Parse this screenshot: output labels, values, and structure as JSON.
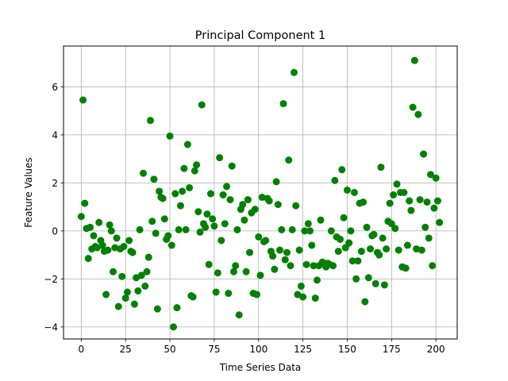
{
  "chart_data": {
    "type": "scatter",
    "title": "Principal Component 1",
    "xlabel": "Time Series Data",
    "ylabel": "Feature Values",
    "xlim": [
      -10,
      212
    ],
    "ylim": [
      -4.5,
      7.7
    ],
    "xticks": [
      0,
      25,
      50,
      75,
      100,
      125,
      150,
      175,
      200
    ],
    "yticks": [
      -4,
      -2,
      0,
      2,
      4,
      6
    ],
    "grid": true,
    "marker_color": "#008000",
    "series": [
      {
        "points": [
          [
            0,
            0.6
          ],
          [
            1,
            5.45
          ],
          [
            2,
            1.15
          ],
          [
            3,
            0.1
          ],
          [
            4,
            -1.15
          ],
          [
            5,
            0.15
          ],
          [
            6,
            -0.75
          ],
          [
            7,
            -0.2
          ],
          [
            8,
            -0.65
          ],
          [
            9,
            -0.7
          ],
          [
            10,
            0.35
          ],
          [
            11,
            -0.4
          ],
          [
            12,
            -0.6
          ],
          [
            13,
            -0.85
          ],
          [
            14,
            -2.65
          ],
          [
            15,
            -0.8
          ],
          [
            16,
            0.25
          ],
          [
            17,
            0.0
          ],
          [
            18,
            -1.7
          ],
          [
            19,
            -0.7
          ],
          [
            20,
            -0.3
          ],
          [
            21,
            -3.15
          ],
          [
            22,
            -0.75
          ],
          [
            23,
            -1.9
          ],
          [
            24,
            -0.65
          ],
          [
            25,
            -2.8
          ],
          [
            26,
            -2.55
          ],
          [
            27,
            -0.4
          ],
          [
            28,
            -0.85
          ],
          [
            29,
            -0.9
          ],
          [
            30,
            -3.05
          ],
          [
            31,
            -1.95
          ],
          [
            32,
            -2.5
          ],
          [
            33,
            0.05
          ],
          [
            34,
            -1.85
          ],
          [
            35,
            2.4
          ],
          [
            36,
            -2.3
          ],
          [
            37,
            -1.7
          ],
          [
            38,
            -1.1
          ],
          [
            39,
            4.6
          ],
          [
            40,
            0.4
          ],
          [
            41,
            2.15
          ],
          [
            42,
            -0.1
          ],
          [
            43,
            -3.25
          ],
          [
            44,
            1.65
          ],
          [
            45,
            1.4
          ],
          [
            46,
            1.35
          ],
          [
            47,
            0.5
          ],
          [
            48,
            -0.35
          ],
          [
            49,
            -0.2
          ],
          [
            50,
            3.95
          ],
          [
            51,
            -0.6
          ],
          [
            52,
            -4.0
          ],
          [
            53,
            1.55
          ],
          [
            54,
            -3.2
          ],
          [
            55,
            0.05
          ],
          [
            56,
            1.05
          ],
          [
            57,
            1.65
          ],
          [
            58,
            2.6
          ],
          [
            59,
            0.05
          ],
          [
            60,
            3.6
          ],
          [
            61,
            1.8
          ],
          [
            62,
            -2.7
          ],
          [
            63,
            -2.75
          ],
          [
            64,
            2.5
          ],
          [
            65,
            2.75
          ],
          [
            66,
            0.8
          ],
          [
            67,
            -0.05
          ],
          [
            68,
            5.25
          ],
          [
            69,
            0.3
          ],
          [
            70,
            0.15
          ],
          [
            71,
            0.7
          ],
          [
            72,
            -1.4
          ],
          [
            73,
            1.55
          ],
          [
            74,
            0.5
          ],
          [
            75,
            0.2
          ],
          [
            76,
            -2.55
          ],
          [
            77,
            -1.75
          ],
          [
            78,
            3.05
          ],
          [
            79,
            -0.4
          ],
          [
            80,
            1.5
          ],
          [
            81,
            0.3
          ],
          [
            82,
            1.85
          ],
          [
            83,
            -2.6
          ],
          [
            84,
            1.3
          ],
          [
            85,
            2.7
          ],
          [
            86,
            -1.7
          ],
          [
            87,
            -1.45
          ],
          [
            88,
            0.05
          ],
          [
            89,
            -3.5
          ],
          [
            90,
            0.9
          ],
          [
            91,
            1.1
          ],
          [
            92,
            0.45
          ],
          [
            93,
            -1.7
          ],
          [
            94,
            1.3
          ],
          [
            95,
            -0.9
          ],
          [
            96,
            0.75
          ],
          [
            97,
            -2.6
          ],
          [
            98,
            0.9
          ],
          [
            99,
            -2.65
          ],
          [
            100,
            -0.25
          ],
          [
            101,
            -1.85
          ],
          [
            102,
            1.4
          ],
          [
            103,
            -0.45
          ],
          [
            104,
            -0.4
          ],
          [
            105,
            1.35
          ],
          [
            106,
            1.25
          ],
          [
            107,
            -0.85
          ],
          [
            108,
            -1.05
          ],
          [
            109,
            -1.6
          ],
          [
            110,
            2.05
          ],
          [
            111,
            1.1
          ],
          [
            112,
            -0.8
          ],
          [
            113,
            0.05
          ],
          [
            114,
            5.3
          ],
          [
            115,
            -1.2
          ],
          [
            116,
            -0.9
          ],
          [
            117,
            2.95
          ],
          [
            118,
            -1.45
          ],
          [
            119,
            0.05
          ],
          [
            120,
            6.6
          ],
          [
            121,
            1.05
          ],
          [
            122,
            -2.65
          ],
          [
            123,
            -0.8
          ],
          [
            124,
            -2.3
          ],
          [
            125,
            -2.75
          ],
          [
            126,
            0.0
          ],
          [
            127,
            -1.4
          ],
          [
            128,
            0.3
          ],
          [
            129,
            0.0
          ],
          [
            130,
            -0.6
          ],
          [
            131,
            -1.45
          ],
          [
            132,
            -2.8
          ],
          [
            133,
            -2.05
          ],
          [
            134,
            -1.45
          ],
          [
            135,
            0.45
          ],
          [
            136,
            -1.3
          ],
          [
            137,
            -1.35
          ],
          [
            138,
            -1.5
          ],
          [
            139,
            -1.35
          ],
          [
            140,
            -1.4
          ],
          [
            141,
            0.0
          ],
          [
            142,
            -1.45
          ],
          [
            143,
            2.1
          ],
          [
            144,
            -0.25
          ],
          [
            145,
            -0.85
          ],
          [
            146,
            -0.35
          ],
          [
            147,
            2.55
          ],
          [
            148,
            0.55
          ],
          [
            149,
            -0.7
          ],
          [
            150,
            1.7
          ],
          [
            151,
            -0.5
          ],
          [
            152,
            0.0
          ],
          [
            153,
            -1.25
          ],
          [
            154,
            1.6
          ],
          [
            155,
            -2.0
          ],
          [
            156,
            -1.25
          ],
          [
            157,
            1.15
          ],
          [
            158,
            -0.85
          ],
          [
            159,
            1.2
          ],
          [
            160,
            -2.95
          ],
          [
            161,
            0.15
          ],
          [
            162,
            -1.95
          ],
          [
            163,
            -0.75
          ],
          [
            164,
            -0.2
          ],
          [
            165,
            -0.15
          ],
          [
            166,
            -2.2
          ],
          [
            167,
            -0.9
          ],
          [
            168,
            -1.0
          ],
          [
            169,
            2.65
          ],
          [
            170,
            -0.3
          ],
          [
            171,
            -2.25
          ],
          [
            172,
            -0.75
          ],
          [
            173,
            0.4
          ],
          [
            174,
            1.15
          ],
          [
            175,
            0.3
          ],
          [
            176,
            1.5
          ],
          [
            177,
            0.1
          ],
          [
            178,
            1.95
          ],
          [
            179,
            -0.8
          ],
          [
            180,
            1.6
          ],
          [
            181,
            -1.5
          ],
          [
            182,
            1.6
          ],
          [
            183,
            -1.55
          ],
          [
            184,
            -0.6
          ],
          [
            185,
            1.25
          ],
          [
            186,
            0.85
          ],
          [
            187,
            5.15
          ],
          [
            188,
            7.1
          ],
          [
            189,
            -0.75
          ],
          [
            190,
            4.85
          ],
          [
            191,
            1.3
          ],
          [
            192,
            -0.8
          ],
          [
            193,
            3.2
          ],
          [
            194,
            0.15
          ],
          [
            195,
            1.2
          ],
          [
            196,
            -0.3
          ],
          [
            197,
            2.35
          ],
          [
            198,
            -1.45
          ],
          [
            199,
            0.95
          ],
          [
            200,
            2.2
          ],
          [
            201,
            1.25
          ],
          [
            202,
            0.35
          ]
        ]
      }
    ]
  }
}
